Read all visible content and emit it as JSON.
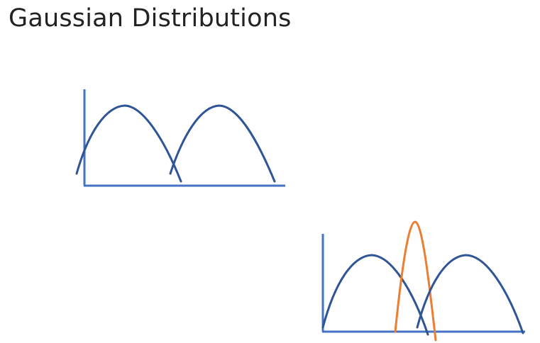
{
  "slide": {
    "title": "Gaussian Distributions"
  },
  "colors": {
    "axis": "#4472C4",
    "curve": "#2F5597",
    "highlight": "#ED7D31",
    "title": "#222222"
  },
  "diagrams": [
    {
      "name": "two-overlapping-gaussians",
      "curve_count": 2,
      "curve_colors": [
        "#2F5597",
        "#2F5597"
      ]
    },
    {
      "name": "two-gaussians-with-narrow-middle-gaussian",
      "curve_count": 3,
      "curve_colors": [
        "#2F5597",
        "#ED7D31",
        "#2F5597"
      ]
    }
  ]
}
